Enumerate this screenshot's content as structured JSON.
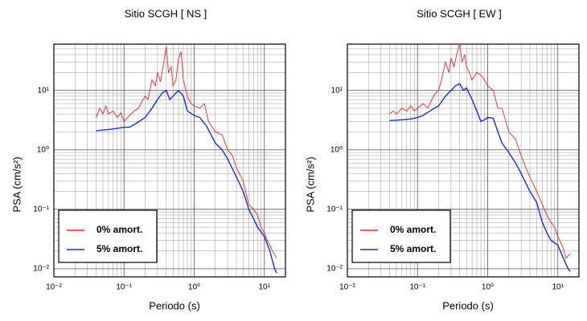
{
  "chart_data": [
    {
      "type": "line",
      "title": "Sitio SCGH [ NS ]",
      "xlabel": "Periodo (s)",
      "ylabel": "PSA (cm/s²)",
      "xscale": "log",
      "yscale": "log",
      "grid": true,
      "legend": "lower left",
      "xlim": [
        0.01,
        20
      ],
      "ylim": [
        0.0073,
        60
      ],
      "xticks": [
        {
          "value": 0.01,
          "label": "10⁻²"
        },
        {
          "value": 0.1,
          "label": "10⁻¹"
        },
        {
          "value": 1,
          "label": "10⁰"
        },
        {
          "value": 10,
          "label": "10¹"
        }
      ],
      "yticks": [
        {
          "value": 0.01,
          "label": "10⁻²"
        },
        {
          "value": 0.1,
          "label": "10⁻¹"
        },
        {
          "value": 1,
          "label": "10⁰"
        },
        {
          "value": 10,
          "label": "10¹"
        }
      ],
      "series": [
        {
          "name": "0% amort.",
          "color": "#e8262a",
          "x": [
            0.04,
            0.045,
            0.05,
            0.055,
            0.06,
            0.07,
            0.08,
            0.09,
            0.1,
            0.12,
            0.14,
            0.16,
            0.18,
            0.2,
            0.22,
            0.25,
            0.28,
            0.3,
            0.33,
            0.37,
            0.4,
            0.43,
            0.47,
            0.5,
            0.55,
            0.6,
            0.65,
            0.7,
            0.8,
            0.9,
            1,
            1.2,
            1.4,
            1.6,
            2,
            2.5,
            3,
            3.5,
            4,
            5,
            6,
            7,
            8,
            9,
            10,
            11,
            12,
            13,
            15
          ],
          "values": [
            3.5,
            5,
            4,
            5.5,
            4,
            4.5,
            3.5,
            4.2,
            3,
            3.8,
            4.5,
            5,
            6.5,
            8,
            7,
            15,
            12,
            20,
            14,
            30,
            55,
            20,
            25,
            12,
            15,
            35,
            45,
            15,
            8,
            6,
            5.5,
            5,
            6,
            3,
            2,
            1.8,
            1,
            0.8,
            0.5,
            0.3,
            0.12,
            0.1,
            0.08,
            0.05,
            0.04,
            0.03,
            0.025,
            0.02,
            0.015
          ]
        },
        {
          "name": "5% amort.",
          "color": "#1a2bd6",
          "x": [
            0.04,
            0.05,
            0.06,
            0.08,
            0.1,
            0.12,
            0.15,
            0.2,
            0.25,
            0.3,
            0.35,
            0.4,
            0.45,
            0.5,
            0.6,
            0.7,
            0.8,
            1,
            1.2,
            1.5,
            2,
            2.5,
            3,
            4,
            5,
            6,
            7,
            8,
            10,
            12,
            14,
            15
          ],
          "values": [
            2.1,
            2.15,
            2.2,
            2.3,
            2.4,
            2.4,
            2.8,
            3.5,
            5,
            7,
            9,
            10,
            7,
            8,
            10,
            8,
            4.5,
            3.8,
            3.5,
            2.5,
            1.3,
            1.0,
            0.7,
            0.35,
            0.2,
            0.1,
            0.07,
            0.05,
            0.035,
            0.02,
            0.01,
            0.0085
          ]
        }
      ]
    },
    {
      "type": "line",
      "title": "Sitio SCGH [ EW ]",
      "xlabel": "Periodo (s)",
      "ylabel": "PSA (cm/s²)",
      "xscale": "log",
      "yscale": "log",
      "grid": true,
      "legend": "lower left",
      "xlim": [
        0.01,
        20
      ],
      "ylim": [
        0.0073,
        60
      ],
      "xticks": [
        {
          "value": 0.01,
          "label": "10⁻²"
        },
        {
          "value": 0.1,
          "label": "10⁻¹"
        },
        {
          "value": 1,
          "label": "10⁰"
        },
        {
          "value": 10,
          "label": "10¹"
        }
      ],
      "yticks": [
        {
          "value": 0.01,
          "label": "10⁻²"
        },
        {
          "value": 0.1,
          "label": "10⁻¹"
        },
        {
          "value": 1,
          "label": "10⁰"
        },
        {
          "value": 10,
          "label": "10¹"
        }
      ],
      "series": [
        {
          "name": "0% amort.",
          "color": "#e8262a",
          "x": [
            0.04,
            0.045,
            0.05,
            0.06,
            0.07,
            0.08,
            0.09,
            0.1,
            0.12,
            0.14,
            0.16,
            0.18,
            0.2,
            0.22,
            0.25,
            0.28,
            0.3,
            0.33,
            0.37,
            0.4,
            0.43,
            0.47,
            0.5,
            0.55,
            0.6,
            0.7,
            0.8,
            0.9,
            1,
            1.2,
            1.4,
            1.6,
            2,
            2.5,
            3,
            3.5,
            4,
            5,
            6,
            7,
            8,
            9,
            10,
            12,
            13,
            15
          ],
          "values": [
            4,
            4.5,
            4,
            5,
            4.5,
            5.5,
            4.5,
            5,
            6,
            5,
            7,
            9,
            10,
            15,
            30,
            20,
            35,
            25,
            45,
            60,
            30,
            40,
            25,
            20,
            15,
            20,
            18,
            15,
            12,
            10,
            5,
            5,
            2,
            1.5,
            0.8,
            0.5,
            0.35,
            0.2,
            0.12,
            0.08,
            0.06,
            0.05,
            0.035,
            0.022,
            0.015,
            0.018
          ]
        },
        {
          "name": "5% amort.",
          "color": "#1a2bd6",
          "x": [
            0.04,
            0.06,
            0.08,
            0.1,
            0.12,
            0.15,
            0.2,
            0.25,
            0.3,
            0.35,
            0.4,
            0.45,
            0.5,
            0.6,
            0.7,
            0.8,
            0.9,
            1,
            1.2,
            1.4,
            1.6,
            2,
            2.5,
            3,
            4,
            5,
            6,
            7,
            8,
            10,
            12,
            14,
            15
          ],
          "values": [
            3.1,
            3.2,
            3.3,
            3.5,
            3.8,
            4.5,
            5.5,
            8,
            10,
            12,
            13,
            10,
            11,
            7,
            4.5,
            3,
            3.2,
            3.5,
            3.4,
            2,
            1.3,
            0.9,
            0.6,
            0.4,
            0.2,
            0.13,
            0.06,
            0.04,
            0.03,
            0.025,
            0.015,
            0.01,
            0.009
          ]
        }
      ]
    }
  ]
}
